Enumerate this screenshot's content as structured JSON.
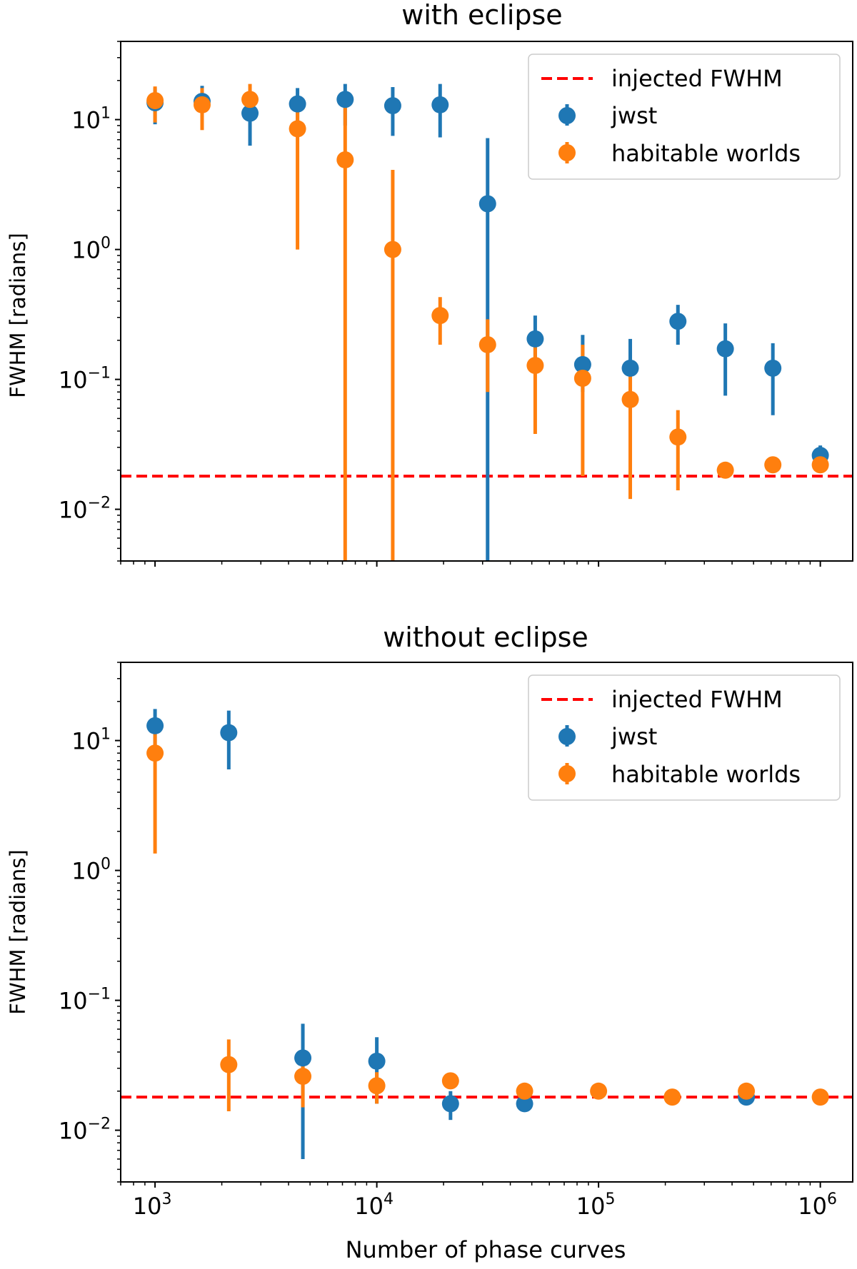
{
  "chart_data": [
    {
      "type": "scatter",
      "title": "with eclipse",
      "xlabel": "",
      "ylabel": "FWHM [radians]",
      "xscale": "log",
      "yscale": "log",
      "xlim": [
        700,
        1400000
      ],
      "ylim": [
        0.004,
        40
      ],
      "x_ticks": [
        "10^3",
        "10^4",
        "10^5",
        "10^6"
      ],
      "y_ticks": [
        "10^-2",
        "10^-1",
        "10^0",
        "10^1"
      ],
      "legend_position": "top-right",
      "reference_line": {
        "name": "injected FWHM",
        "y": 0.018,
        "color": "#ff0000",
        "style": "dashed"
      },
      "series": [
        {
          "name": "jwst",
          "color": "#1f77b4",
          "points": [
            {
              "x": 1000,
              "y": 13.5,
              "lo": 9.2,
              "hi": 17.5
            },
            {
              "x": 1630,
              "y": 13.8,
              "lo": 10.5,
              "hi": 18.2
            },
            {
              "x": 2680,
              "y": 11.2,
              "lo": 6.3,
              "hi": 16.0
            },
            {
              "x": 4390,
              "y": 13.2,
              "lo": 8.5,
              "hi": 17.5
            },
            {
              "x": 7200,
              "y": 14.3,
              "lo": 9.0,
              "hi": 18.8
            },
            {
              "x": 11800,
              "y": 12.8,
              "lo": 7.5,
              "hi": 17.8
            },
            {
              "x": 19300,
              "y": 13.0,
              "lo": 7.3,
              "hi": 18.8
            },
            {
              "x": 31600,
              "y": 2.25,
              "lo": 0.003,
              "hi": 7.2
            },
            {
              "x": 51800,
              "y": 0.205,
              "lo": 0.12,
              "hi": 0.31
            },
            {
              "x": 84800,
              "y": 0.13,
              "lo": 0.08,
              "hi": 0.22
            },
            {
              "x": 139000,
              "y": 0.122,
              "lo": 0.065,
              "hi": 0.205
            },
            {
              "x": 228000,
              "y": 0.28,
              "lo": 0.185,
              "hi": 0.375
            },
            {
              "x": 373000,
              "y": 0.172,
              "lo": 0.075,
              "hi": 0.27
            },
            {
              "x": 611000,
              "y": 0.122,
              "lo": 0.053,
              "hi": 0.19
            },
            {
              "x": 1000000,
              "y": 0.026,
              "lo": 0.021,
              "hi": 0.031
            }
          ]
        },
        {
          "name": "habitable worlds",
          "color": "#ff7f0e",
          "points": [
            {
              "x": 1000,
              "y": 14.0,
              "lo": 9.5,
              "hi": 18.0
            },
            {
              "x": 1630,
              "y": 13.0,
              "lo": 8.3,
              "hi": 17.5
            },
            {
              "x": 2680,
              "y": 14.3,
              "lo": 9.8,
              "hi": 18.8
            },
            {
              "x": 4390,
              "y": 8.5,
              "lo": 1.0,
              "hi": 14.5
            },
            {
              "x": 7200,
              "y": 4.9,
              "lo": 0.003,
              "hi": 12.5
            },
            {
              "x": 11800,
              "y": 1.0,
              "lo": 0.003,
              "hi": 4.1
            },
            {
              "x": 19300,
              "y": 0.31,
              "lo": 0.185,
              "hi": 0.43
            },
            {
              "x": 31600,
              "y": 0.185,
              "lo": 0.08,
              "hi": 0.29
            },
            {
              "x": 51800,
              "y": 0.128,
              "lo": 0.038,
              "hi": 0.22
            },
            {
              "x": 84800,
              "y": 0.102,
              "lo": 0.018,
              "hi": 0.185
            },
            {
              "x": 139000,
              "y": 0.07,
              "lo": 0.012,
              "hi": 0.125
            },
            {
              "x": 228000,
              "y": 0.036,
              "lo": 0.014,
              "hi": 0.058
            },
            {
              "x": 373000,
              "y": 0.02,
              "lo": 0.02,
              "hi": 0.02
            },
            {
              "x": 611000,
              "y": 0.022,
              "lo": 0.022,
              "hi": 0.022
            },
            {
              "x": 1000000,
              "y": 0.022,
              "lo": 0.022,
              "hi": 0.022
            }
          ]
        }
      ]
    },
    {
      "type": "scatter",
      "title": "without eclipse",
      "xlabel": "Number of phase curves",
      "ylabel": "FWHM [radians]",
      "xscale": "log",
      "yscale": "log",
      "xlim": [
        700,
        1400000
      ],
      "ylim": [
        0.004,
        40
      ],
      "x_ticks": [
        "10^3",
        "10^4",
        "10^5",
        "10^6"
      ],
      "y_ticks": [
        "10^-2",
        "10^-1",
        "10^0",
        "10^1"
      ],
      "legend_position": "top-right",
      "reference_line": {
        "name": "injected FWHM",
        "y": 0.018,
        "color": "#ff0000",
        "style": "dashed"
      },
      "series": [
        {
          "name": "jwst",
          "color": "#1f77b4",
          "points": [
            {
              "x": 1000,
              "y": 13.0,
              "lo": 8.5,
              "hi": 17.5
            },
            {
              "x": 2150,
              "y": 11.5,
              "lo": 6.0,
              "hi": 17.0
            },
            {
              "x": 4640,
              "y": 0.036,
              "lo": 0.006,
              "hi": 0.066
            },
            {
              "x": 10000,
              "y": 0.034,
              "lo": 0.016,
              "hi": 0.052
            },
            {
              "x": 21500,
              "y": 0.016,
              "lo": 0.012,
              "hi": 0.02
            },
            {
              "x": 46400,
              "y": 0.016,
              "lo": 0.016,
              "hi": 0.016
            },
            {
              "x": 464000,
              "y": 0.018,
              "lo": 0.018,
              "hi": 0.018
            }
          ]
        },
        {
          "name": "habitable worlds",
          "color": "#ff7f0e",
          "points": [
            {
              "x": 1000,
              "y": 8.0,
              "lo": 1.35,
              "hi": 13.5
            },
            {
              "x": 2150,
              "y": 0.032,
              "lo": 0.014,
              "hi": 0.05
            },
            {
              "x": 4640,
              "y": 0.026,
              "lo": 0.015,
              "hi": 0.034
            },
            {
              "x": 10000,
              "y": 0.022,
              "lo": 0.016,
              "hi": 0.028
            },
            {
              "x": 21500,
              "y": 0.024,
              "lo": 0.024,
              "hi": 0.024
            },
            {
              "x": 46400,
              "y": 0.02,
              "lo": 0.02,
              "hi": 0.02
            },
            {
              "x": 100000,
              "y": 0.02,
              "lo": 0.02,
              "hi": 0.02
            },
            {
              "x": 215000,
              "y": 0.018,
              "lo": 0.018,
              "hi": 0.018
            },
            {
              "x": 464000,
              "y": 0.02,
              "lo": 0.02,
              "hi": 0.02
            },
            {
              "x": 1000000,
              "y": 0.018,
              "lo": 0.018,
              "hi": 0.018
            }
          ]
        }
      ]
    }
  ]
}
